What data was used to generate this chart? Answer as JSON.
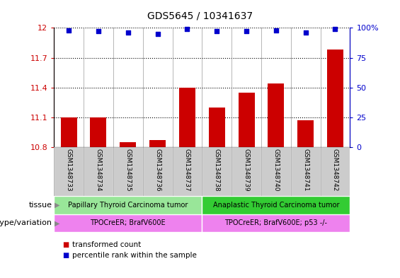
{
  "title": "GDS5645 / 10341637",
  "samples": [
    "GSM1348733",
    "GSM1348734",
    "GSM1348735",
    "GSM1348736",
    "GSM1348737",
    "GSM1348738",
    "GSM1348739",
    "GSM1348740",
    "GSM1348741",
    "GSM1348742"
  ],
  "transformed_count": [
    11.1,
    11.1,
    10.85,
    10.87,
    11.4,
    11.2,
    11.35,
    11.44,
    11.07,
    11.78
  ],
  "percentile_rank": [
    98,
    97,
    96,
    95,
    99,
    97,
    97,
    98,
    96,
    99
  ],
  "bar_color": "#cc0000",
  "dot_color": "#0000cc",
  "ylim_left": [
    10.8,
    12.0
  ],
  "ylim_right": [
    0,
    100
  ],
  "yticks_left": [
    10.8,
    11.1,
    11.4,
    11.7,
    12.0
  ],
  "yticks_right": [
    0,
    25,
    50,
    75,
    100
  ],
  "ytick_labels_left": [
    "10.8",
    "11.1",
    "11.4",
    "11.7",
    "12"
  ],
  "ytick_labels_right": [
    "0",
    "25",
    "50",
    "75",
    "100%"
  ],
  "hlines": [
    11.1,
    11.4,
    11.7
  ],
  "tissue_groups": [
    {
      "label": "Papillary Thyroid Carcinoma tumor",
      "start": 0,
      "end": 5,
      "color": "#99e699"
    },
    {
      "label": "Anaplastic Thyroid Carcinoma tumor",
      "start": 5,
      "end": 10,
      "color": "#33cc33"
    }
  ],
  "genotype_groups": [
    {
      "label": "TPOCreER; BrafV600E",
      "start": 0,
      "end": 5,
      "color": "#ee82ee"
    },
    {
      "label": "TPOCreER; BrafV600E; p53 -/-",
      "start": 5,
      "end": 10,
      "color": "#ee82ee"
    }
  ],
  "tissue_label": "tissue",
  "genotype_label": "genotype/variation",
  "legend_items": [
    {
      "color": "#cc0000",
      "label": "transformed count"
    },
    {
      "color": "#0000cc",
      "label": "percentile rank within the sample"
    }
  ],
  "bar_width": 0.55,
  "tick_label_color_left": "#cc0000",
  "tick_label_color_right": "#0000cc",
  "sample_bg_color": "#cccccc",
  "dot_size": 18
}
